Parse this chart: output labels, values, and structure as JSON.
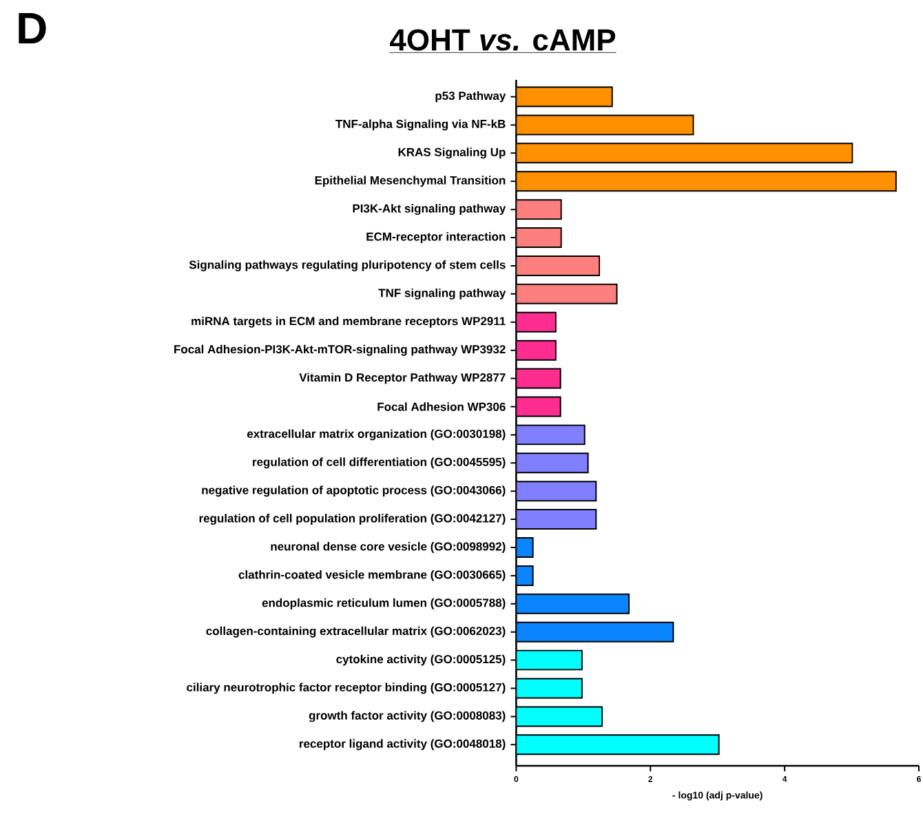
{
  "chart_data": {
    "type": "bar",
    "orientation": "horizontal",
    "title": "4OHT  *vs.* cAMP",
    "xlabel": "- log10 (adj p-value)",
    "annotations": [
      "D"
    ],
    "categories": [
      "p53 Pathway",
      "TNF-alpha Signaling via NF-kB",
      "KRAS Signaling Up",
      "Epithelial Mesenchymal Transition",
      "PI3K-Akt signaling pathway",
      "ECM-receptor interaction",
      "Signaling pathways regulating pluripotency of stem cells",
      "TNF signaling pathway",
      "miRNA targets in ECM and membrane receptors WP2911",
      "Focal Adhesion-PI3K-Akt-mTOR-signaling pathway WP3932",
      "Vitamin D Receptor Pathway WP2877",
      "Focal Adhesion WP306",
      "extracellular matrix organization (GO:0030198)",
      "regulation of cell differentiation (GO:0045595)",
      "negative regulation of apoptotic process (GO:0043066)",
      "regulation of cell population proliferation (GO:0042127)",
      "neuronal dense core vesicle (GO:0098992)",
      "clathrin-coated vesicle membrane (GO:0030665)",
      "endoplasmic reticulum lumen (GO:0005788)",
      "collagen-containing extracellular matrix (GO:0062023)",
      "cytokine activity (GO:0005125)",
      "ciliary neurotrophic factor receptor binding (GO:0005127)",
      "growth factor activity (GO:0008083)",
      "receptor ligand activity (GO:0048018)"
    ],
    "values": [
      1.43,
      2.64,
      5.01,
      5.66,
      0.67,
      0.67,
      1.24,
      1.5,
      0.59,
      0.59,
      0.66,
      0.66,
      1.02,
      1.07,
      1.19,
      1.19,
      0.25,
      0.25,
      1.68,
      2.34,
      0.98,
      0.98,
      1.28,
      3.02
    ],
    "colors": [
      "#ff9100",
      "#ff9100",
      "#ff9100",
      "#ff9100",
      "#ff7f7f",
      "#ff7f7f",
      "#ff7f7f",
      "#ff7f7f",
      "#ff2d8f",
      "#ff2d8f",
      "#ff2d8f",
      "#ff2d8f",
      "#7f7fff",
      "#7f7fff",
      "#7f7fff",
      "#7f7fff",
      "#0a84ff",
      "#0a84ff",
      "#0a84ff",
      "#0a84ff",
      "#00ffff",
      "#00ffff",
      "#00ffff",
      "#00ffff"
    ],
    "xlim": [
      0,
      6
    ],
    "xticks": [
      0,
      2,
      4,
      6
    ]
  }
}
